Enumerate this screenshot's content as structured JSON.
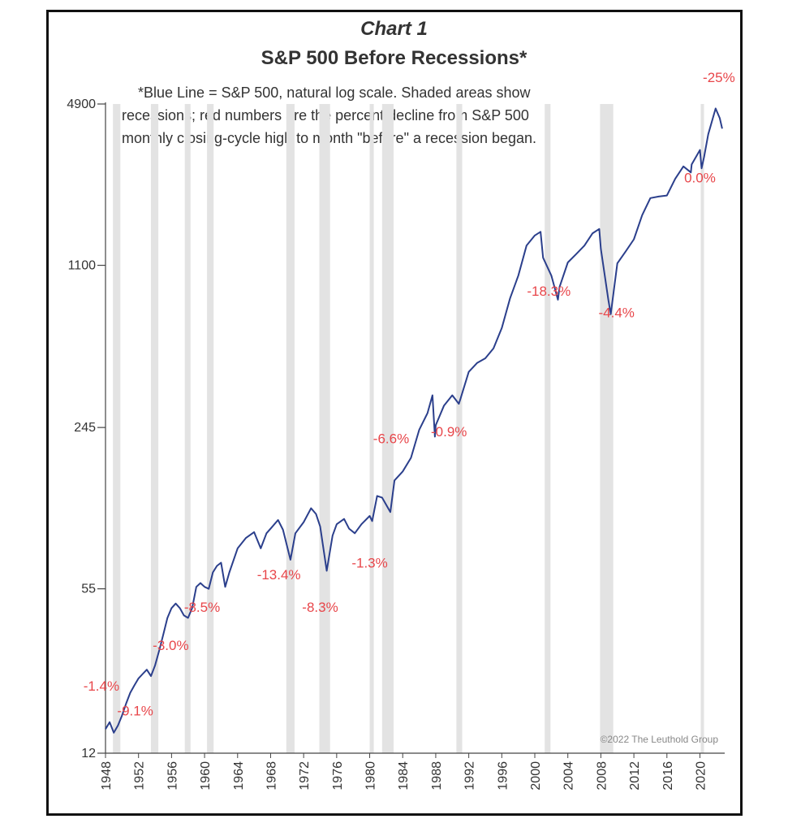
{
  "chart_data": {
    "type": "line",
    "title": "Chart 1",
    "subtitle": "S&P 500 Before Recessions*",
    "note_lines": [
      "*Blue Line = S&P 500, natural log scale. Shaded areas show",
      "recessions; red numbers are the percent decline from S&P 500",
      "monthly closing-cycle high to month \"before\" a recession began."
    ],
    "copyright": "©2022 The Leuthold Group",
    "y_scale": "log",
    "ylim": [
      12,
      4900
    ],
    "xlim": [
      1948,
      2023
    ],
    "y_ticks": [
      "4900",
      "1100",
      "245",
      "55",
      "12"
    ],
    "y_tick_values": [
      4900,
      1100,
      245,
      55,
      12
    ],
    "x_ticks": [
      "1948",
      "1952",
      "1956",
      "1960",
      "1964",
      "1968",
      "1972",
      "1976",
      "1980",
      "1984",
      "1988",
      "1992",
      "1996",
      "2000",
      "2004",
      "2008",
      "2012",
      "2016",
      "2020"
    ],
    "recessions": [
      [
        1948.9,
        1949.8
      ],
      [
        1953.5,
        1954.4
      ],
      [
        1957.6,
        1958.3
      ],
      [
        1960.3,
        1961.1
      ],
      [
        1969.9,
        1970.9
      ],
      [
        1973.9,
        1975.2
      ],
      [
        1980.0,
        1980.5
      ],
      [
        1981.5,
        1982.9
      ],
      [
        1990.5,
        1991.2
      ],
      [
        2001.2,
        2001.9
      ],
      [
        2007.9,
        2009.5
      ],
      [
        2020.1,
        2020.3
      ]
    ],
    "series": [
      {
        "x": [
          1948,
          1948.5,
          1949,
          1949.5,
          1950,
          1950.5,
          1951,
          1951.5,
          1952,
          1952.5,
          1953,
          1953.5,
          1954,
          1954.5,
          1955,
          1955.5,
          1956,
          1956.5,
          1957,
          1957.5,
          1958,
          1958.5,
          1959,
          1959.5,
          1960,
          1960.5,
          1961,
          1961.5,
          1962,
          1962.5,
          1963,
          1964,
          1965,
          1966,
          1966.8,
          1967.5,
          1968,
          1968.9,
          1969.5,
          1970.4,
          1971,
          1972,
          1972.9,
          1973.5,
          1974,
          1974.8,
          1975.5,
          1976,
          1976.9,
          1977.5,
          1978.2,
          1979,
          1980,
          1980.3,
          1980.9,
          1981.5,
          1982.5,
          1983,
          1984,
          1985,
          1986,
          1987,
          1987.6,
          1987.9,
          1988,
          1989,
          1990,
          1990.8,
          1991,
          1992,
          1993,
          1994,
          1995,
          1996,
          1997,
          1998,
          1999,
          2000,
          2000.7,
          2001,
          2002,
          2002.8,
          2003,
          2004,
          2005,
          2006,
          2007,
          2007.8,
          2008,
          2008.9,
          2009.2,
          2010,
          2011,
          2012,
          2013,
          2014,
          2015,
          2016,
          2017,
          2018,
          2018.9,
          2019,
          2020,
          2020.2,
          2020.5,
          2021,
          2021.9,
          2022.4,
          2022.7
        ],
        "values": [
          15,
          16,
          14.5,
          15.5,
          17,
          19,
          21,
          22.5,
          24,
          25,
          26,
          24.5,
          27,
          31,
          36,
          42,
          46,
          48,
          46,
          43,
          42,
          46,
          56,
          58,
          56,
          55,
          64,
          68,
          70,
          56,
          64,
          80,
          88,
          93,
          80,
          92,
          96,
          104,
          95,
          72,
          92,
          102,
          116,
          110,
          98,
          65,
          90,
          100,
          105,
          96,
          92,
          100,
          108,
          103,
          130,
          128,
          112,
          150,
          163,
          185,
          240,
          280,
          330,
          225,
          250,
          300,
          330,
          305,
          320,
          410,
          445,
          465,
          510,
          615,
          810,
          1000,
          1320,
          1450,
          1500,
          1180,
          1000,
          800,
          900,
          1130,
          1220,
          1320,
          1480,
          1540,
          1280,
          800,
          700,
          1120,
          1250,
          1400,
          1750,
          2050,
          2080,
          2100,
          2450,
          2750,
          2600,
          2800,
          3200,
          2700,
          3000,
          3700,
          4700,
          4300,
          3900
        ]
      }
    ],
    "annotations": [
      {
        "label": "-25%",
        "x": 2022.3,
        "y": 6000
      },
      {
        "label": "0.0%",
        "x": 2020.0,
        "y": 2370
      },
      {
        "label": "-4.4%",
        "x": 2009.9,
        "y": 680
      },
      {
        "label": "-18.3%",
        "x": 2001.7,
        "y": 830
      },
      {
        "label": "-0.9%",
        "x": 1989.6,
        "y": 226
      },
      {
        "label": "-6.6%",
        "x": 1982.6,
        "y": 212
      },
      {
        "label": "-1.3%",
        "x": 1980.0,
        "y": 67
      },
      {
        "label": "-13.4%",
        "x": 1969.0,
        "y": 60
      },
      {
        "label": "-8.3%",
        "x": 1974.0,
        "y": 44.5
      },
      {
        "label": "-8.5%",
        "x": 1959.7,
        "y": 44.5
      },
      {
        "label": "-3.0%",
        "x": 1955.9,
        "y": 31.2
      },
      {
        "label": "-1.4%",
        "x": 1947.5,
        "y": 21.4
      },
      {
        "label": "-9.1%",
        "x": 1951.6,
        "y": 17.0
      }
    ],
    "colors": {
      "line": "#2b3f8c",
      "recession": "#e3e3e3",
      "annotation": "#e8464a"
    }
  }
}
